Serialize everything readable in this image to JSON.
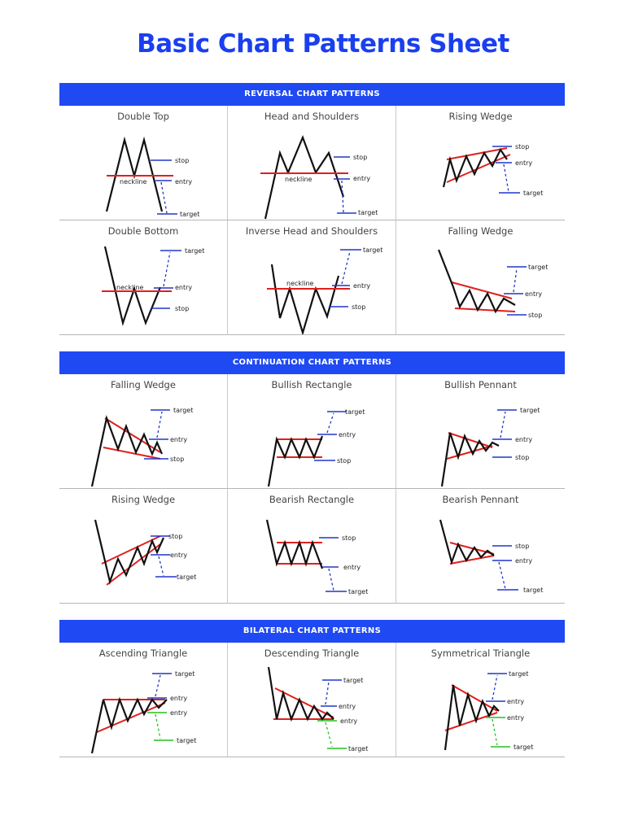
{
  "title": "Basic Chart Patterns Sheet",
  "colors": {
    "accent": "#1f49f2",
    "title": "#1a3ff0",
    "trend": "#e0201c",
    "level": "#2236c8",
    "bilateral_target": "#22c022"
  },
  "sections": [
    {
      "header": "REVERSAL CHART PATTERNS",
      "patterns": [
        {
          "name": "Double Top",
          "labels": [
            "stop",
            "neckline",
            "entry",
            "target"
          ]
        },
        {
          "name": "Head and Shoulders",
          "labels": [
            "stop",
            "neckline",
            "entry",
            "target"
          ]
        },
        {
          "name": "Rising Wedge",
          "labels": [
            "stop",
            "entry",
            "target"
          ]
        },
        {
          "name": "Double Bottom",
          "labels": [
            "target",
            "neckline",
            "entry",
            "stop"
          ]
        },
        {
          "name": "Inverse Head and Shoulders",
          "labels": [
            "target",
            "neckline",
            "entry",
            "stop"
          ]
        },
        {
          "name": "Falling Wedge",
          "labels": [
            "target",
            "entry",
            "stop"
          ]
        }
      ]
    },
    {
      "header": "CONTINUATION CHART PATTERNS",
      "patterns": [
        {
          "name": "Falling Wedge",
          "labels": [
            "target",
            "entry",
            "stop"
          ]
        },
        {
          "name": "Bullish Rectangle",
          "labels": [
            "target",
            "entry",
            "stop"
          ]
        },
        {
          "name": "Bullish Pennant",
          "labels": [
            "target",
            "entry",
            "stop"
          ]
        },
        {
          "name": "Rising Wedge",
          "labels": [
            "stop",
            "entry",
            "target"
          ]
        },
        {
          "name": "Bearish Rectangle",
          "labels": [
            "stop",
            "entry",
            "target"
          ]
        },
        {
          "name": "Bearish Pennant",
          "labels": [
            "stop",
            "entry",
            "target"
          ]
        }
      ]
    },
    {
      "header": "BILATERAL CHART PATTERNS",
      "patterns": [
        {
          "name": "Ascending Triangle",
          "labels": [
            "target",
            "entry",
            "entry",
            "target"
          ]
        },
        {
          "name": "Descending Triangle",
          "labels": [
            "target",
            "entry",
            "entry",
            "target"
          ]
        },
        {
          "name": "Symmetrical Triangle",
          "labels": [
            "target",
            "entry",
            "entry",
            "target"
          ]
        }
      ]
    }
  ]
}
